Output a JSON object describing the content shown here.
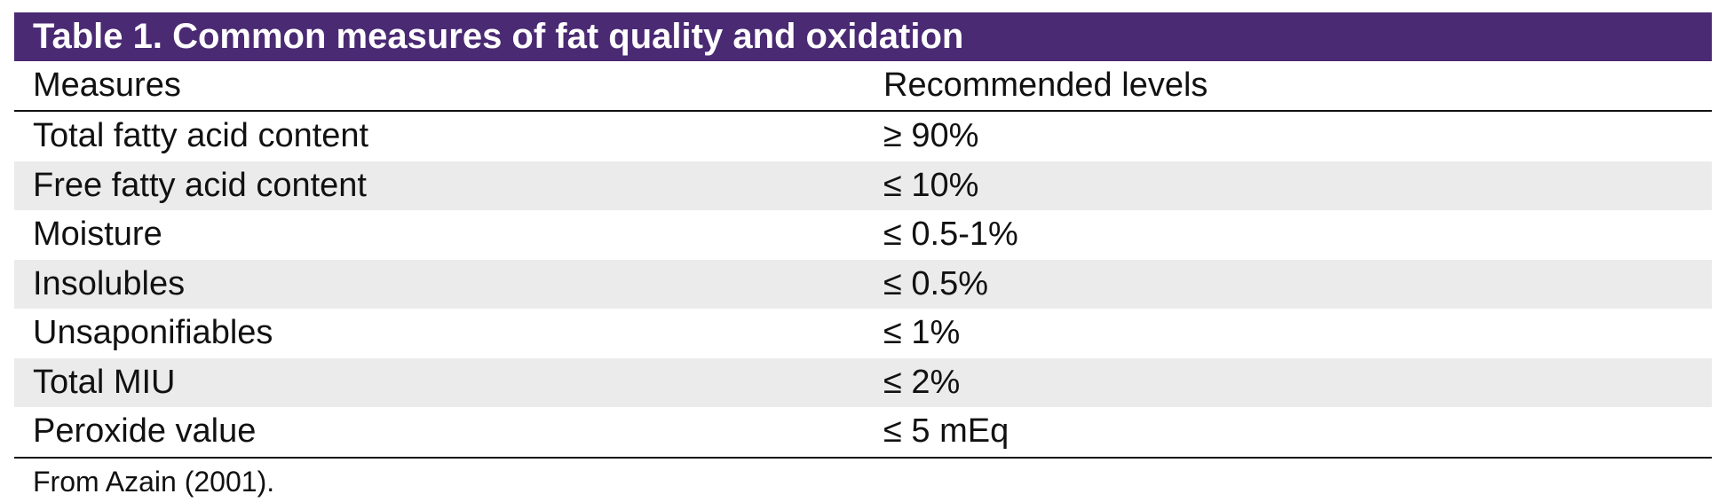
{
  "table": {
    "title": "Table 1. Common measures of fat quality and oxidation",
    "columns": [
      "Measures",
      "Recommended levels"
    ],
    "rows": [
      {
        "measure": "Total fatty acid content",
        "level": "≥ 90%"
      },
      {
        "measure": "Free fatty acid content",
        "level": "≤ 10%"
      },
      {
        "measure": "Moisture",
        "level": "≤ 0.5-1%"
      },
      {
        "measure": "Insolubles",
        "level": "≤ 0.5%"
      },
      {
        "measure": "Unsaponifiables",
        "level": "≤ 1%"
      },
      {
        "measure": "Total MIU",
        "level": "≤ 2%"
      },
      {
        "measure": "Peroxide value",
        "level": "≤ 5 mEq"
      }
    ],
    "footnote": "From Azain (2001).",
    "colors": {
      "title_bg": "#4a2a73",
      "shaded_row": "#ebebeb"
    }
  }
}
